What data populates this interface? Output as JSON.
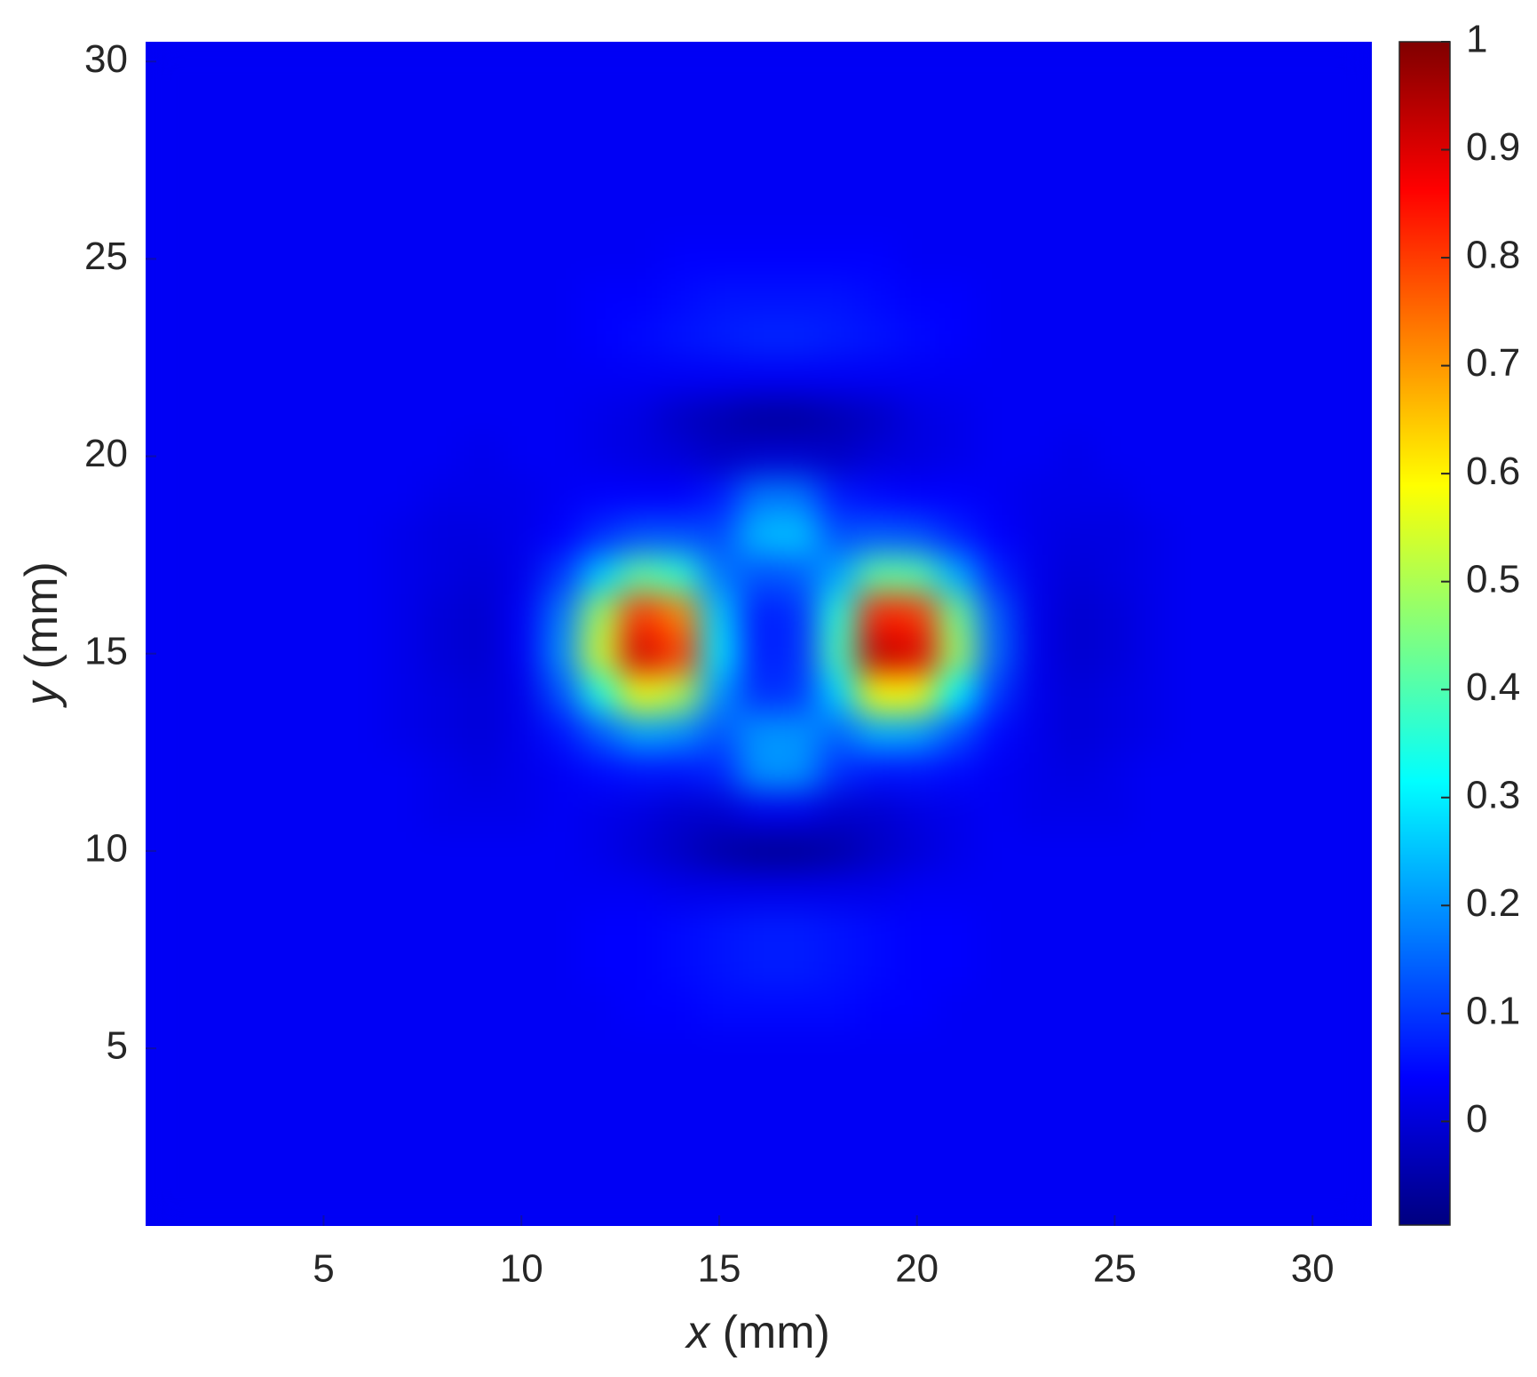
{
  "chart_data": {
    "type": "heatmap",
    "x_label": "x (mm)",
    "y_label": "y (mm)",
    "colormap": "jet",
    "x": [
      1,
      2,
      3,
      4,
      5,
      6,
      7,
      8,
      9,
      10,
      11,
      12,
      13,
      14,
      15,
      16,
      17,
      18,
      19,
      20,
      21,
      22,
      23,
      24,
      25,
      26,
      27,
      28,
      29,
      30,
      31
    ],
    "y": [
      1,
      2,
      3,
      4,
      5,
      6,
      7,
      8,
      9,
      10,
      11,
      12,
      13,
      14,
      15,
      16,
      17,
      18,
      19,
      20,
      21,
      22,
      23,
      24,
      25,
      26,
      27,
      28,
      29,
      30
    ],
    "xlim": [
      0.5,
      31.5
    ],
    "ylim": [
      0.5,
      30.5
    ],
    "xticks": [
      5,
      10,
      15,
      20,
      25,
      30
    ],
    "yticks": [
      5,
      10,
      15,
      20,
      25,
      30
    ],
    "clim": [
      -0.096,
      1
    ],
    "cticks": [
      0,
      0.1,
      0.2,
      0.3,
      0.4,
      0.5,
      0.6,
      0.7,
      0.8,
      0.9,
      1
    ],
    "z": [
      [
        0.03,
        0.03,
        0.03,
        0.03,
        0.03,
        0.03,
        0.03,
        0.03,
        0.03,
        0.03,
        0.03,
        0.03,
        0.03,
        0.03,
        0.03,
        0.03,
        0.03,
        0.03,
        0.03,
        0.03,
        0.03,
        0.03,
        0.03,
        0.03,
        0.03,
        0.03,
        0.03,
        0.03,
        0.03,
        0.03,
        0.03
      ],
      [
        0.03,
        0.03,
        0.03,
        0.03,
        0.03,
        0.03,
        0.03,
        0.03,
        0.03,
        0.03,
        0.03,
        0.03,
        0.03,
        0.03,
        0.03,
        0.03,
        0.03,
        0.03,
        0.03,
        0.03,
        0.03,
        0.03,
        0.03,
        0.03,
        0.03,
        0.03,
        0.03,
        0.03,
        0.03,
        0.03,
        0.03
      ],
      [
        0.03,
        0.03,
        0.03,
        0.03,
        0.03,
        0.03,
        0.03,
        0.03,
        0.03,
        0.03,
        0.03,
        0.03,
        0.03,
        0.03,
        0.03,
        0.03,
        0.03,
        0.03,
        0.03,
        0.03,
        0.03,
        0.03,
        0.03,
        0.03,
        0.03,
        0.03,
        0.03,
        0.03,
        0.03,
        0.03,
        0.03
      ],
      [
        0.03,
        0.03,
        0.03,
        0.03,
        0.03,
        0.03,
        0.03,
        0.03,
        0.03,
        0.03,
        0.03,
        0.03,
        0.03,
        0.03,
        0.03,
        0.03,
        0.03,
        0.03,
        0.03,
        0.03,
        0.03,
        0.03,
        0.03,
        0.03,
        0.03,
        0.03,
        0.03,
        0.03,
        0.03,
        0.03,
        0.03
      ],
      [
        0.03,
        0.03,
        0.03,
        0.03,
        0.03,
        0.03,
        0.03,
        0.03,
        0.03,
        0.03,
        0.03,
        0.03,
        0.03,
        0.03,
        0.03,
        0.03,
        0.03,
        0.03,
        0.03,
        0.03,
        0.03,
        0.03,
        0.03,
        0.03,
        0.03,
        0.03,
        0.03,
        0.03,
        0.03,
        0.03,
        0.03
      ],
      [
        0.03,
        0.03,
        0.03,
        0.03,
        0.03,
        0.03,
        0.03,
        0.03,
        0.03,
        0.03,
        0.03,
        0.03,
        0.04,
        0.04,
        0.05,
        0.05,
        0.05,
        0.05,
        0.04,
        0.04,
        0.03,
        0.03,
        0.03,
        0.03,
        0.03,
        0.03,
        0.03,
        0.03,
        0.03,
        0.03,
        0.03
      ],
      [
        0.03,
        0.03,
        0.03,
        0.03,
        0.03,
        0.03,
        0.03,
        0.03,
        0.03,
        0.03,
        0.03,
        0.04,
        0.04,
        0.05,
        0.06,
        0.07,
        0.07,
        0.06,
        0.05,
        0.04,
        0.04,
        0.03,
        0.03,
        0.03,
        0.03,
        0.03,
        0.03,
        0.03,
        0.03,
        0.03,
        0.03
      ],
      [
        0.03,
        0.03,
        0.03,
        0.03,
        0.03,
        0.03,
        0.03,
        0.03,
        0.03,
        0.03,
        0.03,
        0.04,
        0.04,
        0.05,
        0.06,
        0.07,
        0.07,
        0.06,
        0.05,
        0.04,
        0.04,
        0.03,
        0.03,
        0.03,
        0.03,
        0.03,
        0.03,
        0.03,
        0.03,
        0.03,
        0.03
      ],
      [
        0.03,
        0.03,
        0.03,
        0.03,
        0.03,
        0.03,
        0.03,
        0.03,
        0.03,
        0.03,
        0.03,
        0.03,
        0.03,
        0.02,
        0.02,
        0.02,
        0.02,
        0.02,
        0.02,
        0.03,
        0.03,
        0.03,
        0.03,
        0.03,
        0.03,
        0.03,
        0.03,
        0.03,
        0.03,
        0.03,
        0.03
      ],
      [
        0.03,
        0.03,
        0.03,
        0.03,
        0.03,
        0.03,
        0.03,
        0.03,
        0.03,
        0.03,
        0.03,
        0.02,
        0,
        -0.02,
        -0.05,
        -0.07,
        -0.07,
        -0.05,
        -0.02,
        0,
        0.02,
        0.03,
        0.03,
        0.03,
        0.03,
        0.03,
        0.03,
        0.03,
        0.03,
        0.03,
        0.03
      ],
      [
        0.03,
        0.03,
        0.03,
        0.03,
        0.03,
        0.03,
        0.03,
        0.02,
        0.02,
        0.02,
        0.03,
        0.02,
        0.01,
        -0.01,
        -0.01,
        0.02,
        0.02,
        -0.01,
        -0.01,
        0.01,
        0.02,
        0.03,
        0.02,
        0.02,
        0.02,
        0.03,
        0.03,
        0.03,
        0.03,
        0.03,
        0.03
      ],
      [
        0.03,
        0.03,
        0.03,
        0.03,
        0.03,
        0.03,
        0.03,
        0.02,
        0.01,
        0.02,
        0.03,
        0.05,
        0.06,
        0.06,
        0.08,
        0.2,
        0.2,
        0.09,
        0.06,
        0.06,
        0.05,
        0.03,
        0.02,
        0.01,
        0.02,
        0.03,
        0.03,
        0.03,
        0.03,
        0.03,
        0.03
      ],
      [
        0.03,
        0.03,
        0.03,
        0.03,
        0.03,
        0.03,
        0.02,
        0.01,
        0,
        0.02,
        0.06,
        0.14,
        0.22,
        0.2,
        0.13,
        0.2,
        0.2,
        0.15,
        0.23,
        0.22,
        0.13,
        0.05,
        0.02,
        0,
        0.01,
        0.02,
        0.03,
        0.03,
        0.03,
        0.03,
        0.03
      ],
      [
        0.03,
        0.03,
        0.03,
        0.03,
        0.03,
        0.03,
        0.02,
        0.01,
        0,
        0.02,
        0.13,
        0.35,
        0.58,
        0.51,
        0.2,
        0.09,
        0.1,
        0.27,
        0.59,
        0.58,
        0.31,
        0.1,
        0.02,
        0,
        0.01,
        0.02,
        0.03,
        0.03,
        0.03,
        0.03,
        0.03
      ],
      [
        0.03,
        0.03,
        0.03,
        0.03,
        0.03,
        0.03,
        0.02,
        0,
        -0.01,
        0.03,
        0.19,
        0.54,
        0.91,
        0.8,
        0.29,
        0.07,
        0.09,
        0.39,
        0.93,
        0.9,
        0.49,
        0.15,
        0.02,
        -0.01,
        0,
        0.02,
        0.03,
        0.03,
        0.03,
        0.03,
        0.03
      ],
      [
        0.03,
        0.03,
        0.03,
        0.03,
        0.03,
        0.03,
        0.02,
        0,
        -0.01,
        0.03,
        0.17,
        0.49,
        0.81,
        0.72,
        0.26,
        0.07,
        0.09,
        0.36,
        0.83,
        0.81,
        0.44,
        0.14,
        0.02,
        -0.01,
        0,
        0.02,
        0.03,
        0.03,
        0.03,
        0.03,
        0.03
      ],
      [
        0.03,
        0.03,
        0.03,
        0.03,
        0.03,
        0.03,
        0.02,
        0.01,
        0,
        0.02,
        0.1,
        0.26,
        0.42,
        0.37,
        0.17,
        0.13,
        0.14,
        0.22,
        0.42,
        0.41,
        0.23,
        0.08,
        0.02,
        0,
        0.01,
        0.02,
        0.03,
        0.03,
        0.03,
        0.03,
        0.03
      ],
      [
        0.03,
        0.03,
        0.03,
        0.03,
        0.03,
        0.03,
        0.02,
        0.01,
        0.01,
        0.02,
        0.04,
        0.09,
        0.13,
        0.13,
        0.12,
        0.24,
        0.25,
        0.13,
        0.14,
        0.13,
        0.08,
        0.04,
        0.02,
        0.01,
        0.01,
        0.02,
        0.03,
        0.03,
        0.03,
        0.03,
        0.03
      ],
      [
        0.03,
        0.03,
        0.03,
        0.03,
        0.03,
        0.03,
        0.03,
        0.02,
        0.02,
        0.02,
        0.03,
        0.04,
        0.04,
        0.04,
        0.07,
        0.17,
        0.17,
        0.07,
        0.05,
        0.04,
        0.04,
        0.03,
        0.02,
        0.02,
        0.02,
        0.03,
        0.03,
        0.03,
        0.03,
        0.03,
        0.03
      ],
      [
        0.03,
        0.03,
        0.03,
        0.03,
        0.03,
        0.03,
        0.03,
        0.03,
        0.02,
        0.03,
        0.03,
        0.02,
        0.01,
        0,
        -0.02,
        -0.01,
        -0.01,
        -0.02,
        0,
        0.01,
        0.02,
        0.03,
        0.03,
        0.02,
        0.03,
        0.03,
        0.03,
        0.03,
        0.03,
        0.03,
        0.03
      ],
      [
        0.03,
        0.03,
        0.03,
        0.03,
        0.03,
        0.03,
        0.03,
        0.03,
        0.03,
        0.03,
        0.03,
        0.02,
        0.01,
        -0.02,
        -0.04,
        -0.06,
        -0.06,
        -0.04,
        -0.02,
        0.01,
        0.02,
        0.03,
        0.03,
        0.03,
        0.03,
        0.03,
        0.03,
        0.03,
        0.03,
        0.03,
        0.03
      ],
      [
        0.03,
        0.03,
        0.03,
        0.03,
        0.03,
        0.03,
        0.03,
        0.03,
        0.03,
        0.03,
        0.03,
        0.03,
        0.03,
        0.03,
        0.03,
        0.03,
        0.03,
        0.03,
        0.03,
        0.03,
        0.03,
        0.03,
        0.03,
        0.03,
        0.03,
        0.03,
        0.03,
        0.03,
        0.03,
        0.03,
        0.03
      ],
      [
        0.03,
        0.03,
        0.03,
        0.03,
        0.03,
        0.03,
        0.03,
        0.03,
        0.03,
        0.03,
        0.03,
        0.04,
        0.05,
        0.06,
        0.07,
        0.08,
        0.08,
        0.07,
        0.06,
        0.05,
        0.04,
        0.03,
        0.03,
        0.03,
        0.03,
        0.03,
        0.03,
        0.03,
        0.03,
        0.03,
        0.03
      ],
      [
        0.03,
        0.03,
        0.03,
        0.03,
        0.03,
        0.03,
        0.03,
        0.03,
        0.03,
        0.03,
        0.03,
        0.04,
        0.04,
        0.05,
        0.06,
        0.06,
        0.06,
        0.06,
        0.05,
        0.04,
        0.04,
        0.03,
        0.03,
        0.03,
        0.03,
        0.03,
        0.03,
        0.03,
        0.03,
        0.03,
        0.03
      ],
      [
        0.03,
        0.03,
        0.03,
        0.03,
        0.03,
        0.03,
        0.03,
        0.03,
        0.03,
        0.03,
        0.03,
        0.03,
        0.03,
        0.04,
        0.04,
        0.04,
        0.04,
        0.04,
        0.04,
        0.03,
        0.03,
        0.03,
        0.03,
        0.03,
        0.03,
        0.03,
        0.03,
        0.03,
        0.03,
        0.03,
        0.03
      ],
      [
        0.03,
        0.03,
        0.03,
        0.03,
        0.03,
        0.03,
        0.03,
        0.03,
        0.03,
        0.03,
        0.03,
        0.03,
        0.03,
        0.03,
        0.03,
        0.03,
        0.03,
        0.03,
        0.03,
        0.03,
        0.03,
        0.03,
        0.03,
        0.03,
        0.03,
        0.03,
        0.03,
        0.03,
        0.03,
        0.03,
        0.03
      ],
      [
        0.03,
        0.03,
        0.03,
        0.03,
        0.03,
        0.03,
        0.03,
        0.03,
        0.03,
        0.03,
        0.03,
        0.03,
        0.03,
        0.03,
        0.03,
        0.03,
        0.03,
        0.03,
        0.03,
        0.03,
        0.03,
        0.03,
        0.03,
        0.03,
        0.03,
        0.03,
        0.03,
        0.03,
        0.03,
        0.03,
        0.03
      ],
      [
        0.03,
        0.03,
        0.03,
        0.03,
        0.03,
        0.03,
        0.03,
        0.03,
        0.03,
        0.03,
        0.03,
        0.03,
        0.03,
        0.03,
        0.03,
        0.03,
        0.03,
        0.03,
        0.03,
        0.03,
        0.03,
        0.03,
        0.03,
        0.03,
        0.03,
        0.03,
        0.03,
        0.03,
        0.03,
        0.03,
        0.03
      ],
      [
        0.03,
        0.03,
        0.03,
        0.03,
        0.03,
        0.03,
        0.03,
        0.03,
        0.03,
        0.03,
        0.03,
        0.03,
        0.03,
        0.03,
        0.03,
        0.03,
        0.03,
        0.03,
        0.03,
        0.03,
        0.03,
        0.03,
        0.03,
        0.03,
        0.03,
        0.03,
        0.03,
        0.03,
        0.03,
        0.03,
        0.03
      ],
      [
        0.03,
        0.03,
        0.03,
        0.03,
        0.03,
        0.03,
        0.03,
        0.03,
        0.03,
        0.03,
        0.03,
        0.03,
        0.03,
        0.03,
        0.03,
        0.03,
        0.03,
        0.03,
        0.03,
        0.03,
        0.03,
        0.03,
        0.03,
        0.03,
        0.03,
        0.03,
        0.03,
        0.03,
        0.03,
        0.03,
        0.03
      ]
    ]
  }
}
